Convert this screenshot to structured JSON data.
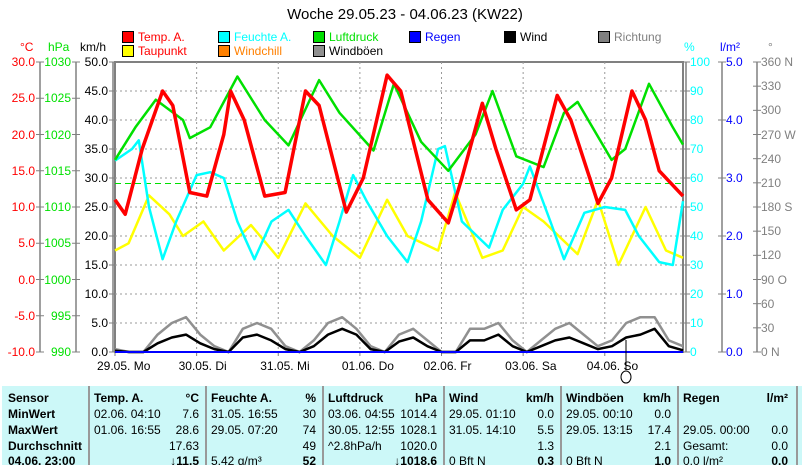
{
  "title": "Woche 29.05.23 - 04.06.23 (KW22)",
  "legend": [
    {
      "label": "Temp. A.",
      "color": "#ff0000"
    },
    {
      "label": "Feuchte A.",
      "color": "#00ffff"
    },
    {
      "label": "Luftdruck",
      "color": "#00e000"
    },
    {
      "label": "Regen",
      "color": "#0000ff"
    },
    {
      "label": "Wind",
      "color": "#000000"
    },
    {
      "label": "Richtung",
      "color": "#808080"
    },
    {
      "label": "Taupunkt",
      "color": "#ffff00"
    },
    {
      "label": "Windchill",
      "color": "#ff8000"
    },
    {
      "label": "Windböen",
      "color": "#909090"
    }
  ],
  "axes": {
    "celsius": {
      "unit": "°C",
      "ticks": [
        "30.0",
        "25.0",
        "20.0",
        "15.0",
        "10.0",
        "5.0",
        "0.0",
        "-5.0",
        "-10.0"
      ]
    },
    "hpa": {
      "unit": "hPa",
      "ticks": [
        "1030",
        "1025",
        "1020",
        "1015",
        "1010",
        "1005",
        "1000",
        "995",
        "990"
      ]
    },
    "kmh": {
      "unit": "km/h",
      "ticks": [
        "50.0",
        "45.0",
        "40.0",
        "35.0",
        "30.0",
        "25.0",
        "20.0",
        "15.0",
        "10.0",
        "5.0",
        "0.0"
      ]
    },
    "percent": {
      "unit": "%",
      "ticks": [
        "100",
        "90",
        "80",
        "70",
        "60",
        "50",
        "40",
        "30",
        "20",
        "10",
        "0"
      ]
    },
    "rain": {
      "unit": "l/m²",
      "ticks": [
        "5.0",
        "4.0",
        "3.0",
        "2.0",
        "1.0",
        "0.0"
      ]
    },
    "dir": {
      "unit": "°",
      "ticks": [
        "360 N",
        "330",
        "300",
        "270 W",
        "240",
        "210",
        "180 S",
        "150",
        "120",
        "90  O",
        "60",
        "30",
        "0   N"
      ]
    },
    "days": [
      "29.05.  Mo",
      "30.05.  Di",
      "31.05.  Mi",
      "01.06.  Do",
      "02.06.  Fr",
      "03.06.  Sa",
      "04.06.  So"
    ]
  },
  "chart_data": {
    "type": "line",
    "x_unit": "hours since 29.05. 00:00",
    "xlim": [
      0,
      167
    ],
    "reference_line_hpa": 1013.25,
    "series": [
      {
        "name": "Luftdruck",
        "unit": "hPa",
        "points": [
          [
            0,
            1016.5
          ],
          [
            6,
            1021
          ],
          [
            12,
            1024.8
          ],
          [
            20,
            1022
          ],
          [
            22,
            1019.5
          ],
          [
            28,
            1021
          ],
          [
            36,
            1028
          ],
          [
            44,
            1022
          ],
          [
            51,
            1018.5
          ],
          [
            60,
            1027.5
          ],
          [
            66,
            1023
          ],
          [
            76,
            1017.8
          ],
          [
            82,
            1027
          ],
          [
            90,
            1019
          ],
          [
            98,
            1015
          ],
          [
            106,
            1020
          ],
          [
            111,
            1026
          ],
          [
            118,
            1017
          ],
          [
            126,
            1015.5
          ],
          [
            132,
            1023
          ],
          [
            136,
            1024.5
          ],
          [
            146,
            1016.5
          ],
          [
            150,
            1018
          ],
          [
            157,
            1027
          ],
          [
            164,
            1021
          ],
          [
            167,
            1018.6
          ]
        ]
      },
      {
        "name": "Temp. A.",
        "unit": "°C",
        "points": [
          [
            0,
            11
          ],
          [
            3,
            9
          ],
          [
            8,
            18
          ],
          [
            14,
            26
          ],
          [
            17,
            24
          ],
          [
            22,
            12
          ],
          [
            27,
            11.5
          ],
          [
            32,
            20
          ],
          [
            34,
            26
          ],
          [
            38,
            22
          ],
          [
            44,
            11.5
          ],
          [
            50,
            12
          ],
          [
            56,
            26
          ],
          [
            60,
            24
          ],
          [
            68,
            9.3
          ],
          [
            73,
            14
          ],
          [
            80,
            28.2
          ],
          [
            84,
            26
          ],
          [
            92,
            11
          ],
          [
            98,
            7.8
          ],
          [
            102,
            14
          ],
          [
            108,
            24.3
          ],
          [
            112,
            18
          ],
          [
            118,
            9.6
          ],
          [
            122,
            11
          ],
          [
            130,
            25.4
          ],
          [
            134,
            22
          ],
          [
            142,
            10.5
          ],
          [
            146,
            14
          ],
          [
            152,
            26
          ],
          [
            156,
            22
          ],
          [
            160,
            15
          ],
          [
            167,
            11.5
          ]
        ]
      },
      {
        "name": "Feuchte A.",
        "unit": "%",
        "points": [
          [
            0,
            66
          ],
          [
            5,
            70
          ],
          [
            7,
            73
          ],
          [
            10,
            50
          ],
          [
            14,
            32
          ],
          [
            18,
            45
          ],
          [
            24,
            61
          ],
          [
            28,
            62
          ],
          [
            32,
            60
          ],
          [
            36,
            45
          ],
          [
            41,
            32
          ],
          [
            46,
            45
          ],
          [
            51,
            49
          ],
          [
            56,
            40
          ],
          [
            62,
            30
          ],
          [
            66,
            45
          ],
          [
            70,
            61
          ],
          [
            74,
            52
          ],
          [
            80,
            40
          ],
          [
            86,
            31
          ],
          [
            90,
            45
          ],
          [
            95,
            70
          ],
          [
            97,
            71
          ],
          [
            102,
            45
          ],
          [
            110,
            36
          ],
          [
            114,
            49
          ],
          [
            120,
            58
          ],
          [
            122,
            64
          ],
          [
            128,
            45
          ],
          [
            132,
            32
          ],
          [
            138,
            48
          ],
          [
            144,
            50
          ],
          [
            150,
            49
          ],
          [
            154,
            40
          ],
          [
            160,
            31
          ],
          [
            164,
            30
          ],
          [
            167,
            52
          ]
        ]
      },
      {
        "name": "Taupunkt",
        "unit": "°C",
        "points": [
          [
            0,
            4
          ],
          [
            4,
            5
          ],
          [
            10,
            11.6
          ],
          [
            16,
            9
          ],
          [
            20,
            6
          ],
          [
            26,
            8
          ],
          [
            32,
            4
          ],
          [
            40,
            7.5
          ],
          [
            48,
            3
          ],
          [
            56,
            10.5
          ],
          [
            64,
            6
          ],
          [
            72,
            3
          ],
          [
            80,
            11
          ],
          [
            86,
            6
          ],
          [
            95,
            4
          ],
          [
            100,
            12
          ],
          [
            108,
            3
          ],
          [
            114,
            4
          ],
          [
            120,
            10
          ],
          [
            126,
            8
          ],
          [
            136,
            3.5
          ],
          [
            142,
            11
          ],
          [
            148,
            2
          ],
          [
            156,
            10
          ],
          [
            162,
            4
          ],
          [
            167,
            3
          ]
        ]
      },
      {
        "name": "Wind",
        "unit": "km/h",
        "values": [
          0.2,
          0,
          0,
          1.5,
          2.5,
          3,
          1.5,
          0.5,
          0,
          2.5,
          3,
          2,
          0.5,
          0,
          1,
          3,
          4,
          3,
          0.5,
          0,
          1.8,
          2.5,
          1,
          0,
          0,
          2,
          2,
          3,
          1,
          0,
          1,
          2,
          2.5,
          1.5,
          0.5,
          1,
          2.5,
          3,
          4,
          1,
          0.3
        ]
      },
      {
        "name": "Windböen",
        "unit": "km/h",
        "values": [
          0.5,
          0,
          0,
          3,
          5,
          6,
          3,
          1,
          0,
          4,
          5,
          4,
          1,
          0,
          2,
          5,
          6,
          4,
          1,
          0,
          3,
          4,
          2,
          0,
          0,
          4,
          4,
          5,
          2,
          0,
          2,
          4,
          5,
          3,
          1,
          2,
          5,
          6,
          6,
          2,
          1
        ]
      }
    ]
  },
  "table": {
    "headers": [
      [
        "Sensor",
        ""
      ],
      [
        "Temp. A.",
        "°C"
      ],
      [
        "Feuchte A.",
        "%"
      ],
      [
        "Luftdruck",
        "hPa"
      ],
      [
        "Wind",
        "km/h"
      ],
      [
        "Windböen",
        "km/h"
      ],
      [
        "Regen",
        "l/m²"
      ]
    ],
    "rows": [
      {
        "label": "MinWert",
        "cells": [
          [
            "02.06.  04:10",
            "7.6"
          ],
          [
            "31.05.  16:55",
            "30"
          ],
          [
            "03.06.  04:55",
            "1014.4"
          ],
          [
            "29.05.  01:10",
            "0.0"
          ],
          [
            "29.05.  00:10",
            "0.0"
          ],
          [
            "",
            ""
          ]
        ]
      },
      {
        "label": "MaxWert",
        "cells": [
          [
            "01.06.  16:55",
            "28.6"
          ],
          [
            "29.05.  07:20",
            "74"
          ],
          [
            "30.05.  12:55",
            "1028.1"
          ],
          [
            "31.05.  14:10",
            "5.5"
          ],
          [
            "29.05.  13:15",
            "17.4"
          ],
          [
            "29.05.  00:00",
            "0.0"
          ]
        ]
      },
      {
        "label": "Durchschnitt",
        "cells": [
          [
            "",
            "17.63"
          ],
          [
            "",
            "49"
          ],
          [
            "^2.8hPa/h",
            "1020.0"
          ],
          [
            "",
            "1.3"
          ],
          [
            "",
            "2.1"
          ],
          [
            "Gesamt:",
            "0.0"
          ]
        ]
      },
      {
        "label": "04.06.  23:00",
        "cells": [
          [
            "",
            "↓11.5"
          ],
          [
            "5.42 g/m³",
            "52"
          ],
          [
            "",
            "↓1018.6"
          ],
          [
            "0 Bft N",
            "0.3"
          ],
          [
            "0 Bft N",
            "1.0"
          ],
          [
            "0.0 l/m²",
            "0.0"
          ]
        ]
      }
    ]
  }
}
